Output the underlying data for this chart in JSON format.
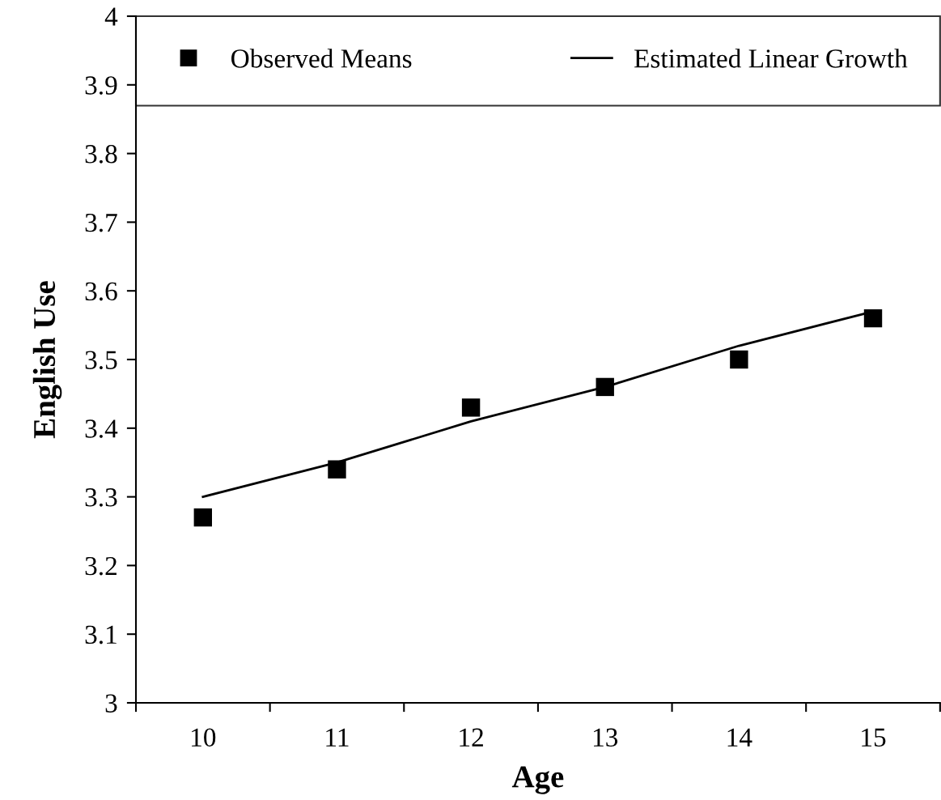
{
  "chart_data": {
    "type": "line",
    "xlabel": "Age",
    "ylabel": "English Use",
    "categories": [
      "10",
      "11",
      "12",
      "13",
      "14",
      "15"
    ],
    "series": [
      {
        "name": "Observed Means",
        "type": "scatter",
        "marker": "square",
        "color": "#000000",
        "values": [
          3.27,
          3.34,
          3.43,
          3.46,
          3.5,
          3.56
        ]
      },
      {
        "name": "Estimated Linear Growth",
        "marker": "none",
        "line_style": "solid",
        "color": "#000000",
        "values": [
          3.3,
          3.35,
          3.41,
          3.46,
          3.52,
          3.57
        ]
      }
    ],
    "ylim": [
      3,
      4
    ],
    "yticks": [
      3,
      3.1,
      3.2,
      3.3,
      3.4,
      3.5,
      3.6,
      3.7,
      3.8,
      3.9,
      4
    ],
    "grid": false,
    "legend": "top"
  }
}
